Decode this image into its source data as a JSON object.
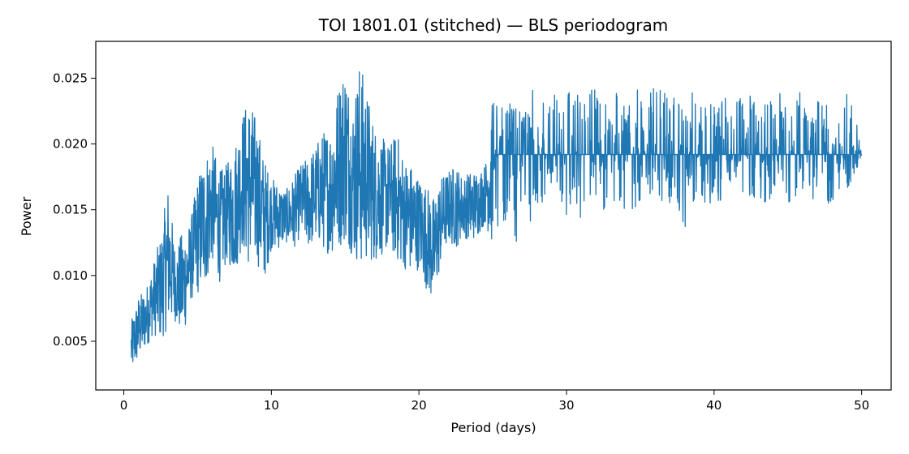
{
  "chart_data": {
    "type": "line",
    "title": "TOI 1801.01 (stitched) — BLS periodogram",
    "xlabel": "Period (days)",
    "ylabel": "Power",
    "xlim": [
      -1.9,
      52.0
    ],
    "ylim": [
      0.0013,
      0.0278
    ],
    "xticks": [
      0,
      10,
      20,
      30,
      40,
      50
    ],
    "yticks": [
      0.005,
      0.01,
      0.015,
      0.02,
      0.025
    ],
    "xtick_labels": [
      "0",
      "10",
      "20",
      "30",
      "40",
      "50"
    ],
    "ytick_labels": [
      "0.005",
      "0.010",
      "0.015",
      "0.020",
      "0.025"
    ],
    "grid": false,
    "legend": "none",
    "line_color": "#1f77b4",
    "baseline": 0.0192,
    "series": [
      {
        "x": [
          0.5,
          1.0,
          1.5,
          2.0,
          2.5,
          3.0,
          3.5,
          4.0,
          4.5,
          5.0,
          5.5,
          6.0,
          6.5,
          7.0,
          7.5,
          8.0,
          8.5,
          9.0,
          9.5,
          10.0,
          10.5,
          11.0,
          11.5,
          12.0,
          12.5,
          13.0,
          13.5,
          14.0,
          14.5,
          15.0,
          15.5,
          16.0,
          16.5,
          17.0,
          17.5,
          18.0,
          18.5,
          19.0,
          19.5,
          20.0,
          20.5,
          21.0,
          21.5,
          22.0,
          22.5,
          23.0,
          23.5,
          24.0,
          24.5,
          25.0,
          25.5,
          26.0,
          26.5,
          27.0,
          27.5,
          28.0,
          28.5,
          29.0,
          29.5,
          30.0,
          30.5,
          31.0,
          31.5,
          32.0,
          32.5,
          33.0,
          33.5,
          34.0,
          34.5,
          35.0,
          35.5,
          36.0,
          36.5,
          37.0,
          37.5,
          38.0,
          38.5,
          39.0,
          39.5,
          40.0,
          40.5,
          41.0,
          41.5,
          42.0,
          42.5,
          43.0,
          43.5,
          44.0,
          44.5,
          45.0,
          45.5,
          46.0,
          46.5,
          47.0,
          47.5,
          48.0,
          48.5,
          49.0,
          49.5,
          50.0
        ],
        "y_low": [
          0.0025,
          0.0035,
          0.0045,
          0.0055,
          0.005,
          0.006,
          0.0065,
          0.005,
          0.008,
          0.0085,
          0.009,
          0.011,
          0.0095,
          0.011,
          0.01,
          0.012,
          0.0105,
          0.011,
          0.0095,
          0.012,
          0.012,
          0.0125,
          0.012,
          0.013,
          0.012,
          0.0125,
          0.012,
          0.0115,
          0.012,
          0.0125,
          0.0115,
          0.0105,
          0.011,
          0.011,
          0.0115,
          0.012,
          0.011,
          0.0105,
          0.01,
          0.0105,
          0.009,
          0.0075,
          0.011,
          0.0125,
          0.012,
          0.013,
          0.0125,
          0.013,
          0.014,
          0.012,
          0.0135,
          0.014,
          0.0115,
          0.0145,
          0.014,
          0.015,
          0.0135,
          0.0155,
          0.015,
          0.0145,
          0.0155,
          0.014,
          0.0155,
          0.015,
          0.015,
          0.014,
          0.0155,
          0.015,
          0.0145,
          0.0155,
          0.0155,
          0.016,
          0.015,
          0.0155,
          0.0155,
          0.013,
          0.0155,
          0.0155,
          0.015,
          0.0155,
          0.015,
          0.0155,
          0.0155,
          0.016,
          0.016,
          0.0155,
          0.0155,
          0.016,
          0.0165,
          0.0155,
          0.016,
          0.015,
          0.0155,
          0.0155,
          0.0155,
          0.0155,
          0.016,
          0.016,
          0.0175,
          0.0192
        ],
        "y_high": [
          0.0065,
          0.0085,
          0.009,
          0.011,
          0.013,
          0.017,
          0.012,
          0.0135,
          0.014,
          0.0175,
          0.0195,
          0.02,
          0.018,
          0.0185,
          0.02,
          0.0225,
          0.0235,
          0.022,
          0.019,
          0.0175,
          0.017,
          0.0165,
          0.0175,
          0.0185,
          0.019,
          0.02,
          0.021,
          0.0215,
          0.0245,
          0.0265,
          0.023,
          0.0265,
          0.024,
          0.0215,
          0.0205,
          0.02,
          0.021,
          0.019,
          0.0185,
          0.0175,
          0.017,
          0.016,
          0.0175,
          0.018,
          0.0185,
          0.0175,
          0.018,
          0.018,
          0.0185,
          0.0235,
          0.0225,
          0.024,
          0.0235,
          0.023,
          0.0245,
          0.024,
          0.0235,
          0.0245,
          0.023,
          0.024,
          0.0245,
          0.0235,
          0.024,
          0.0245,
          0.0235,
          0.0245,
          0.024,
          0.0235,
          0.0245,
          0.024,
          0.0235,
          0.0245,
          0.024,
          0.0235,
          0.0245,
          0.023,
          0.024,
          0.0235,
          0.0245,
          0.0235,
          0.024,
          0.0235,
          0.0245,
          0.023,
          0.024,
          0.0245,
          0.023,
          0.0235,
          0.024,
          0.0235,
          0.023,
          0.0245,
          0.024,
          0.0235,
          0.023,
          0.024,
          0.0235,
          0.0245,
          0.023,
          0.0192
        ]
      }
    ]
  }
}
